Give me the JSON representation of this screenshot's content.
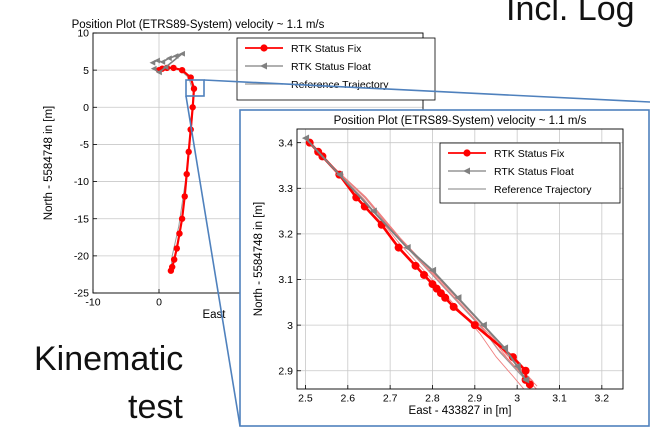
{
  "slide": {
    "title_fragment": "Incl. Log",
    "caption_line1": "Kinematic",
    "caption_line2": "test"
  },
  "colors": {
    "fix": "#ff0000",
    "float": "#808080",
    "reference": "#9a9a9a",
    "callout": "#4f81bd",
    "grid": "#c8c8c8"
  },
  "chart_data": [
    {
      "type": "scatter",
      "title": "Position Plot (ETRS89-System) velocity ~ 1.1 m/s",
      "xlabel": "East",
      "ylabel": "North - 5584748 in [m]",
      "xlim": [
        -10,
        40
      ],
      "ylim": [
        -25,
        10
      ],
      "xticks": [
        -10,
        0
      ],
      "yticks": [
        10,
        5,
        0,
        -5,
        -10,
        -15,
        -20,
        -25
      ],
      "grid": true,
      "legend": {
        "position": "top-right",
        "entries": [
          "RTK Status Fix",
          "RTK Status Float",
          "Reference Trajectory"
        ]
      },
      "series": [
        {
          "name": "RTK Status Fix",
          "style": "line-circle",
          "x": [
            0.0,
            0.5,
            1.2,
            2.2,
            3.5,
            4.8,
            5.3,
            5.1,
            4.8,
            4.5,
            4.2,
            3.9,
            3.5,
            3.1,
            2.7,
            2.3,
            2.0,
            1.8
          ],
          "y": [
            5.0,
            5.2,
            5.3,
            5.3,
            5.0,
            4.0,
            2.5,
            0.0,
            -3.0,
            -6.0,
            -9.0,
            -12.0,
            -15.0,
            -17.0,
            -19.0,
            -20.5,
            -21.5,
            -22.0
          ]
        },
        {
          "name": "RTK Status Float",
          "style": "line-triangle",
          "x": [
            -1.0,
            -0.3,
            0.5,
            1.5,
            2.5,
            3.5,
            1.0,
            0.0,
            -0.8
          ],
          "y": [
            6.0,
            6.3,
            6.1,
            6.6,
            6.9,
            7.2,
            5.4,
            4.7,
            5.2
          ]
        },
        {
          "name": "Reference Trajectory",
          "style": "line",
          "x": [
            0.0,
            1.5,
            3.0,
            4.5,
            5.2,
            5.0,
            4.0,
            3.0,
            2.0,
            1.8
          ],
          "y": [
            5.0,
            5.4,
            5.2,
            4.0,
            2.0,
            -2.0,
            -10.0,
            -16.0,
            -20.0,
            -22.0
          ]
        }
      ]
    },
    {
      "type": "scatter",
      "title": "Position Plot (ETRS89-System) velocity ~ 1.1 m/s",
      "xlabel": "East - 433827 in [m]",
      "ylabel": "North - 5584748 in [m]",
      "xlim": [
        2.48,
        3.25
      ],
      "ylim": [
        2.86,
        3.43
      ],
      "xticks": [
        2.5,
        2.6,
        2.7,
        2.8,
        2.9,
        3.0,
        3.1,
        3.2
      ],
      "xtick_labels": [
        "2.5",
        "2.6",
        "2.7",
        "2.8",
        "2.9",
        "3",
        "3.1",
        "3.2"
      ],
      "yticks": [
        3.4,
        3.3,
        3.2,
        3.1,
        3.0,
        2.9
      ],
      "ytick_labels": [
        "3.4",
        "3.3",
        "3.2",
        "3.1",
        "3",
        "2.9"
      ],
      "grid": true,
      "legend": {
        "position": "top-right",
        "entries": [
          "RTK Status Fix",
          "RTK Status Float",
          "Reference Trajectory"
        ]
      },
      "series": [
        {
          "name": "RTK Status Fix",
          "style": "line-circle",
          "x": [
            2.51,
            2.53,
            2.54,
            2.58,
            2.62,
            2.64,
            2.68,
            2.72,
            2.76,
            2.78,
            2.8,
            2.81,
            2.82,
            2.83,
            2.85,
            2.9,
            2.99,
            3.02,
            3.02,
            3.03
          ],
          "y": [
            3.4,
            3.38,
            3.37,
            3.33,
            3.28,
            3.26,
            3.22,
            3.17,
            3.13,
            3.11,
            3.09,
            3.08,
            3.07,
            3.06,
            3.04,
            3.0,
            2.93,
            2.9,
            2.88,
            2.87
          ]
        },
        {
          "name": "RTK Status Float",
          "style": "line-triangle",
          "x": [
            2.5,
            2.58,
            2.66,
            2.74,
            2.8,
            2.86,
            2.92,
            2.97,
            3.0,
            3.02
          ],
          "y": [
            3.41,
            3.33,
            3.25,
            3.17,
            3.12,
            3.06,
            3.0,
            2.95,
            2.91,
            2.88
          ]
        },
        {
          "name": "Reference Trajectory",
          "style": "line",
          "x": [
            2.5,
            2.56,
            2.64,
            2.72,
            2.8,
            2.86,
            2.92,
            2.96,
            3.0,
            3.03
          ],
          "y": [
            3.41,
            3.35,
            3.28,
            3.19,
            3.11,
            3.05,
            2.99,
            2.94,
            2.9,
            2.87
          ]
        }
      ]
    }
  ]
}
